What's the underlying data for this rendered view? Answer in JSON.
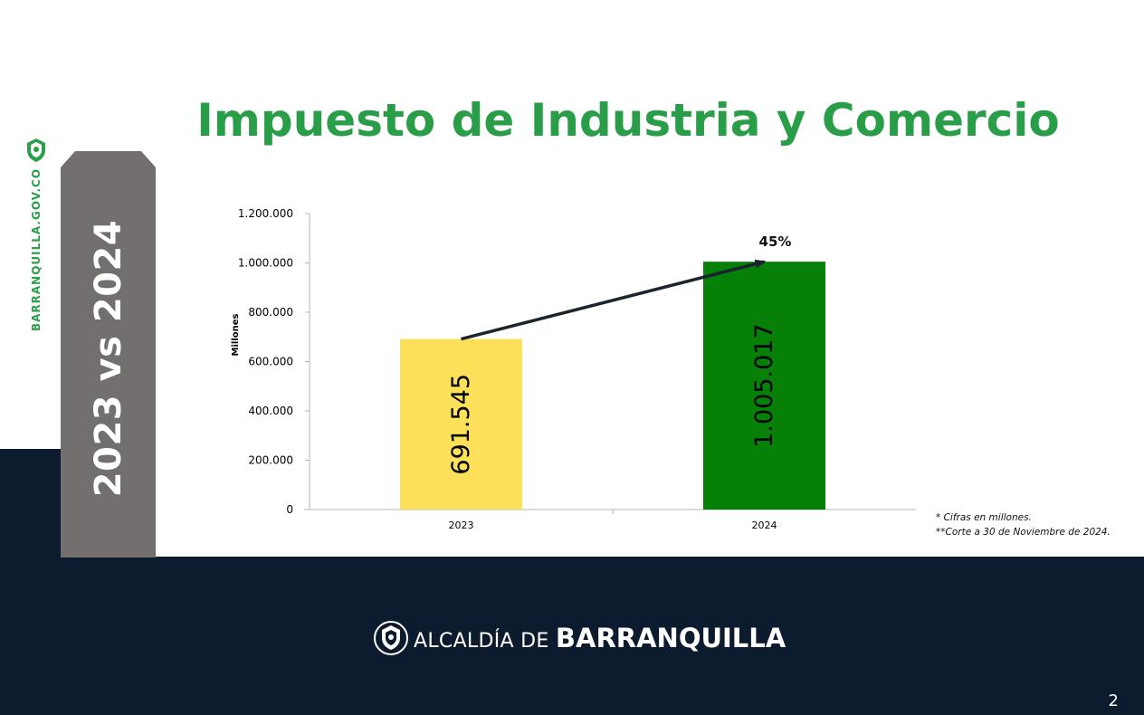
{
  "slide": {
    "title": "Impuesto de Industria y Comercio",
    "side_tab": "2023 vs 2024",
    "side_url": "BARRANQUILLA.GOV.CO",
    "notes": [
      "*  Cifras en millones.",
      "**Corte a 30 de Noviembre de 2024."
    ],
    "brand_prefix": "ALCALDÍA DE ",
    "brand_name": "BARRANQUILLA",
    "page_number": "2",
    "icons": [
      "coat-of-arms-icon"
    ],
    "colors": {
      "title": "#2a9d48",
      "dark_band": "#0c1c2e",
      "side_tab": "#746f6f"
    }
  },
  "chart_data": {
    "type": "bar",
    "categories": [
      "2023",
      "2024"
    ],
    "values": [
      691545,
      1005017
    ],
    "data_labels": [
      "691.545",
      "1.005.017"
    ],
    "bar_colors": [
      "#fde05a",
      "#068006"
    ],
    "ylabel": "Millones",
    "ylim": [
      0,
      1200000
    ],
    "yticks": [
      0,
      200000,
      400000,
      600000,
      800000,
      1000000,
      1200000
    ],
    "ytick_labels": [
      "0",
      "200.000",
      "400.000",
      "600.000",
      "800.000",
      "1.000.000",
      "1.200.000"
    ],
    "annotation": {
      "text": "45%",
      "type": "arrow",
      "from": "2023",
      "to": "2024"
    },
    "grid": false
  }
}
